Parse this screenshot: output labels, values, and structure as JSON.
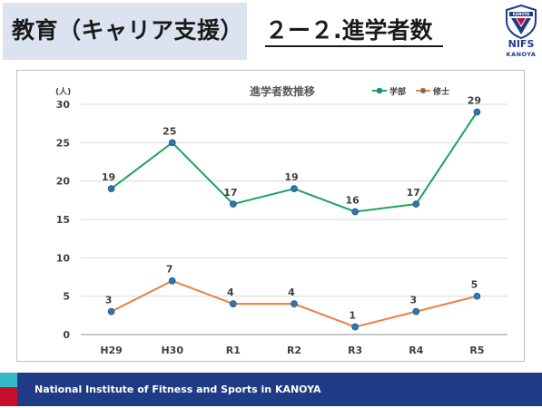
{
  "header": {
    "section_title": "教育（キャリア支援）",
    "slide_title": "２ー２.進学者数"
  },
  "logo": {
    "icon": "kanoya-shield-logo",
    "badge_text": "KANOYA",
    "name": "NIFS",
    "sub": "KANOYA",
    "colors": {
      "blue": "#1f3b86",
      "red": "#c8102e"
    }
  },
  "footer": {
    "text": "National Institute of Fitness and Sports in KANOYA",
    "colors": {
      "bar": "#1f3b86",
      "red": "#c8102e",
      "cyan": "#37b8c7"
    }
  },
  "chart_data": {
    "type": "line",
    "title": "進学者数推移",
    "ylabel": "(人)",
    "xlabel": "",
    "categories": [
      "H29",
      "H30",
      "R1",
      "R2",
      "R3",
      "R4",
      "R5"
    ],
    "ylim": [
      0,
      30
    ],
    "yticks": [
      0,
      5,
      10,
      15,
      20,
      25,
      30
    ],
    "grid": true,
    "legend": "top-right",
    "series": [
      {
        "name": "学部",
        "values": [
          19,
          25,
          17,
          19,
          16,
          17,
          29
        ],
        "color": "#1aa35a",
        "labels": [
          "19",
          "25",
          "17",
          "19",
          "16",
          "17",
          "29"
        ]
      },
      {
        "name": "修士",
        "values": [
          3,
          7,
          4,
          4,
          1,
          3,
          5
        ],
        "color": "#f07f3c",
        "labels": [
          "3",
          "7",
          "4",
          "4",
          "1",
          "3",
          "5"
        ]
      }
    ]
  }
}
